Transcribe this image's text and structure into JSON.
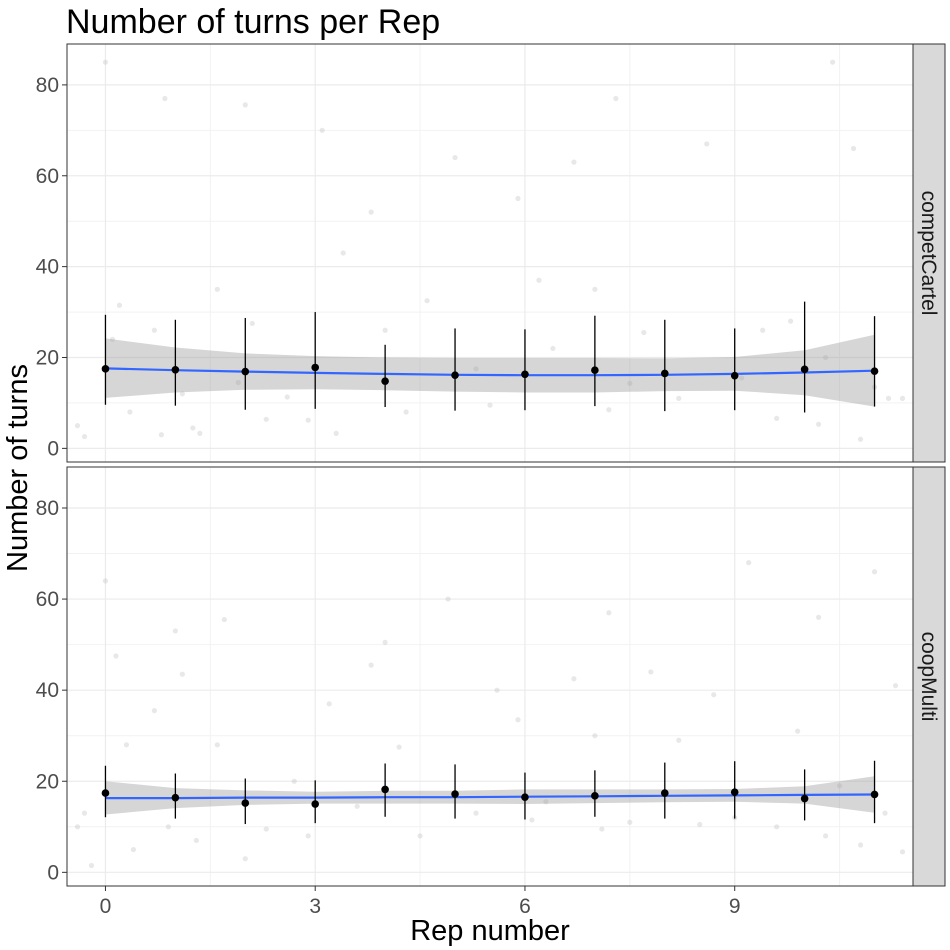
{
  "chart_data": {
    "type": "scatter",
    "title": "Number of turns per Rep",
    "xlabel": "Rep number",
    "ylabel": "Number of turns",
    "xlim": [
      -0.55,
      11.55
    ],
    "ylim": [
      -3,
      89
    ],
    "x_ticks": [
      0,
      3,
      6,
      9
    ],
    "y_ticks": [
      0,
      20,
      40,
      60,
      80
    ],
    "grid": true,
    "legend": "none",
    "colors": {
      "mean_point": "#000000",
      "error_bar": "#000000",
      "smooth_line": "#3366FF",
      "confidence_band": "#999999",
      "raw_points": "#bdbdbd",
      "strip_fill": "#d9d9d9"
    },
    "panels": [
      {
        "strip_label": "competCartel",
        "x": [
          0,
          1,
          2,
          3,
          4,
          5,
          6,
          7,
          8,
          9,
          10,
          11
        ],
        "mean": [
          17.5,
          17.3,
          16.9,
          17.8,
          14.8,
          16.1,
          16.3,
          17.2,
          16.5,
          16.0,
          17.4,
          17.0
        ],
        "error_low": [
          9.6,
          9.4,
          8.5,
          8.7,
          9.1,
          8.3,
          8.4,
          9.3,
          8.2,
          8.4,
          7.9,
          9.2
        ],
        "error_high": [
          29.4,
          28.3,
          28.7,
          30.0,
          22.8,
          26.4,
          26.2,
          29.2,
          28.3,
          26.4,
          32.3,
          29.1
        ],
        "smooth": [
          17.6,
          17.2,
          16.9,
          16.6,
          16.4,
          16.2,
          16.1,
          16.1,
          16.2,
          16.4,
          16.7,
          17.1
        ],
        "smooth_lower": [
          11.1,
          12.3,
          12.9,
          13.0,
          12.8,
          12.5,
          12.3,
          12.3,
          12.6,
          12.7,
          11.7,
          9.2
        ],
        "smooth_upper": [
          24.2,
          22.2,
          20.9,
          20.3,
          20.0,
          19.9,
          19.9,
          19.9,
          19.8,
          20.1,
          21.6,
          25.0
        ],
        "raw_points": [
          [
            -0.4,
            5.0
          ],
          [
            -0.3,
            2.6
          ],
          [
            0.0,
            85.0
          ],
          [
            0.1,
            24.0
          ],
          [
            0.2,
            31.5
          ],
          [
            0.35,
            8.0
          ],
          [
            0.7,
            26.0
          ],
          [
            0.8,
            3.0
          ],
          [
            0.85,
            77.0
          ],
          [
            1.1,
            12.0
          ],
          [
            1.25,
            4.5
          ],
          [
            1.35,
            3.3
          ],
          [
            1.6,
            35.0
          ],
          [
            1.9,
            14.5
          ],
          [
            2.0,
            75.6
          ],
          [
            2.1,
            27.5
          ],
          [
            2.3,
            6.4
          ],
          [
            2.6,
            11.3
          ],
          [
            2.9,
            6.2
          ],
          [
            3.1,
            70.0
          ],
          [
            3.3,
            3.3
          ],
          [
            3.4,
            43.0
          ],
          [
            3.8,
            52.0
          ],
          [
            4.0,
            26.0
          ],
          [
            4.3,
            8.0
          ],
          [
            4.6,
            32.5
          ],
          [
            5.0,
            64.0
          ],
          [
            5.3,
            17.5
          ],
          [
            5.5,
            9.5
          ],
          [
            5.9,
            55.0
          ],
          [
            6.2,
            37.0
          ],
          [
            6.4,
            22.0
          ],
          [
            6.7,
            63.0
          ],
          [
            7.0,
            35.0
          ],
          [
            7.2,
            8.5
          ],
          [
            7.3,
            77.0
          ],
          [
            7.5,
            14.3
          ],
          [
            7.7,
            25.5
          ],
          [
            8.2,
            11.0
          ],
          [
            8.6,
            67.0
          ],
          [
            9.1,
            15.5
          ],
          [
            9.4,
            26.0
          ],
          [
            9.6,
            6.6
          ],
          [
            9.8,
            28.0
          ],
          [
            10.2,
            5.3
          ],
          [
            10.3,
            20.0
          ],
          [
            10.4,
            85.0
          ],
          [
            10.7,
            66.0
          ],
          [
            10.8,
            2.0
          ],
          [
            11.0,
            13.5
          ],
          [
            11.2,
            11.0
          ],
          [
            11.4,
            11.0
          ]
        ]
      },
      {
        "strip_label": "coopMulti",
        "x": [
          0,
          1,
          2,
          3,
          4,
          5,
          6,
          7,
          8,
          9,
          10,
          11
        ],
        "mean": [
          17.4,
          16.4,
          15.2,
          15.0,
          18.2,
          17.2,
          16.5,
          16.8,
          17.4,
          17.6,
          16.2,
          17.1
        ],
        "error_low": [
          12.1,
          11.8,
          10.6,
          10.8,
          12.2,
          11.8,
          11.6,
          12.2,
          11.8,
          11.8,
          11.4,
          10.8
        ],
        "error_high": [
          23.4,
          21.7,
          20.6,
          20.2,
          23.9,
          23.7,
          21.9,
          22.4,
          24.1,
          24.4,
          22.6,
          24.5
        ],
        "smooth": [
          16.3,
          16.3,
          16.4,
          16.4,
          16.5,
          16.5,
          16.6,
          16.7,
          16.8,
          16.9,
          17.0,
          17.1
        ],
        "smooth_lower": [
          12.7,
          14.1,
          14.8,
          15.1,
          15.1,
          15.1,
          15.0,
          15.2,
          15.4,
          15.5,
          15.1,
          13.1
        ],
        "smooth_upper": [
          20.0,
          18.5,
          18.0,
          17.7,
          17.9,
          17.9,
          18.2,
          18.2,
          18.2,
          18.3,
          18.9,
          21.1
        ],
        "raw_points": [
          [
            -0.4,
            10.0
          ],
          [
            -0.3,
            13.0
          ],
          [
            -0.2,
            1.5
          ],
          [
            0.0,
            64.0
          ],
          [
            0.15,
            47.5
          ],
          [
            0.3,
            28.0
          ],
          [
            0.4,
            5.0
          ],
          [
            0.7,
            35.5
          ],
          [
            0.9,
            10.0
          ],
          [
            1.0,
            53.0
          ],
          [
            1.1,
            43.5
          ],
          [
            1.3,
            7.0
          ],
          [
            1.6,
            28.0
          ],
          [
            1.7,
            55.5
          ],
          [
            2.0,
            3.0
          ],
          [
            2.3,
            9.5
          ],
          [
            2.7,
            20.0
          ],
          [
            2.9,
            8.0
          ],
          [
            3.2,
            37.0
          ],
          [
            3.6,
            14.5
          ],
          [
            3.8,
            45.5
          ],
          [
            4.0,
            50.5
          ],
          [
            4.2,
            27.5
          ],
          [
            4.5,
            8.0
          ],
          [
            4.9,
            60.0
          ],
          [
            5.3,
            13.0
          ],
          [
            5.6,
            40.0
          ],
          [
            5.9,
            33.5
          ],
          [
            6.1,
            11.5
          ],
          [
            6.3,
            15.5
          ],
          [
            6.7,
            42.5
          ],
          [
            7.0,
            30.0
          ],
          [
            7.1,
            9.5
          ],
          [
            7.2,
            57.0
          ],
          [
            7.5,
            11.0
          ],
          [
            7.8,
            44.0
          ],
          [
            8.2,
            29.0
          ],
          [
            8.5,
            10.5
          ],
          [
            8.7,
            39.0
          ],
          [
            9.0,
            12.0
          ],
          [
            9.2,
            68.0
          ],
          [
            9.6,
            10.0
          ],
          [
            9.9,
            31.0
          ],
          [
            10.2,
            56.0
          ],
          [
            10.3,
            8.0
          ],
          [
            10.5,
            19.0
          ],
          [
            10.8,
            6.0
          ],
          [
            11.0,
            66.0
          ],
          [
            11.15,
            13.0
          ],
          [
            11.3,
            41.0
          ],
          [
            11.4,
            4.5
          ]
        ]
      }
    ]
  }
}
